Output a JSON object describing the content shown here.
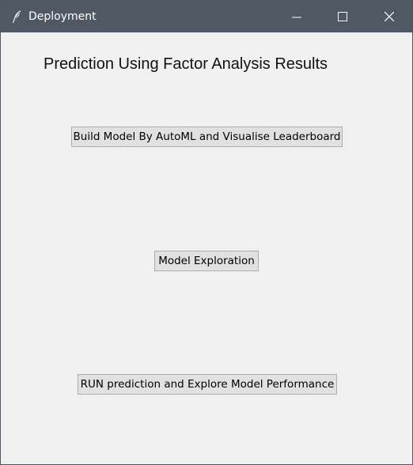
{
  "window": {
    "title": "Deployment",
    "app_icon": "feather-icon",
    "controls": {
      "minimize": "minimize-icon",
      "maximize": "maximize-icon",
      "close": "close-icon"
    },
    "colors": {
      "titlebar": "#4f5863",
      "client_background": "#f0f0f0",
      "button_face": "#e1e1e1",
      "button_border": "#adadad"
    }
  },
  "main": {
    "heading": "Prediction Using Factor Analysis Results",
    "buttons": {
      "build_model": "Build Model By AutoML and Visualise Leaderboard",
      "model_exploration": "Model Exploration",
      "run_prediction": "RUN prediction and Explore Model Performance"
    }
  }
}
